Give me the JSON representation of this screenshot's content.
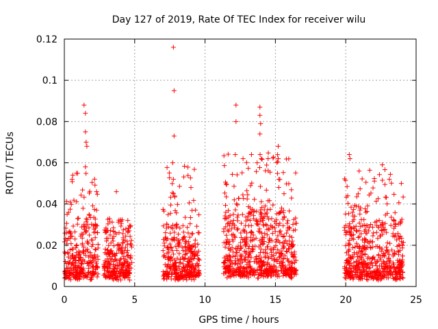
{
  "chart_data": {
    "type": "scatter",
    "title": "Day 127 of 2019, Rate Of TEC Index for receiver wilu",
    "xlabel": "GPS time / hours",
    "ylabel": "ROTI / TECUs",
    "xlim": [
      0,
      25
    ],
    "ylim": [
      0,
      0.12
    ],
    "xticks": [
      0,
      5,
      10,
      15,
      20,
      25
    ],
    "xtick_labels": [
      "0",
      "5",
      "10",
      "15",
      "20",
      "25"
    ],
    "yticks": [
      0,
      0.02,
      0.04,
      0.06,
      0.08,
      0.1,
      0.12
    ],
    "ytick_labels": [
      "0",
      "0.02",
      "0.04",
      "0.06",
      "0.08",
      "0.1",
      "0.12"
    ],
    "grid": true,
    "marker": "+",
    "color": "#ff0000",
    "clusters": [
      {
        "x_range": [
          0.0,
          2.4
        ],
        "y_typical": [
          0.003,
          0.03
        ],
        "y_outlier_max": 0.055
      },
      {
        "x_range": [
          2.8,
          4.8
        ],
        "y_typical": [
          0.003,
          0.026
        ],
        "y_outlier_max": 0.033
      },
      {
        "x_range": [
          7.0,
          9.6
        ],
        "y_typical": [
          0.003,
          0.028
        ],
        "y_outlier_max": 0.06
      },
      {
        "x_range": [
          11.3,
          16.5
        ],
        "y_typical": [
          0.004,
          0.035
        ],
        "y_outlier_max": 0.065
      },
      {
        "x_range": [
          19.9,
          24.1
        ],
        "y_typical": [
          0.003,
          0.03
        ],
        "y_outlier_max": 0.057
      }
    ],
    "notable_points": [
      {
        "x": 1.4,
        "y": 0.088
      },
      {
        "x": 1.5,
        "y": 0.084
      },
      {
        "x": 1.5,
        "y": 0.075
      },
      {
        "x": 1.55,
        "y": 0.07
      },
      {
        "x": 1.6,
        "y": 0.068
      },
      {
        "x": 1.5,
        "y": 0.058
      },
      {
        "x": 0.6,
        "y": 0.054
      },
      {
        "x": 0.55,
        "y": 0.052
      },
      {
        "x": 0.2,
        "y": 0.035
      },
      {
        "x": 3.7,
        "y": 0.046
      },
      {
        "x": 7.75,
        "y": 0.116
      },
      {
        "x": 7.8,
        "y": 0.095
      },
      {
        "x": 7.8,
        "y": 0.073
      },
      {
        "x": 7.7,
        "y": 0.06
      },
      {
        "x": 7.75,
        "y": 0.052
      },
      {
        "x": 9.0,
        "y": 0.048
      },
      {
        "x": 12.2,
        "y": 0.088
      },
      {
        "x": 12.2,
        "y": 0.08
      },
      {
        "x": 13.9,
        "y": 0.087
      },
      {
        "x": 13.9,
        "y": 0.083
      },
      {
        "x": 13.95,
        "y": 0.079
      },
      {
        "x": 13.9,
        "y": 0.074
      },
      {
        "x": 12.15,
        "y": 0.064
      },
      {
        "x": 12.7,
        "y": 0.062
      },
      {
        "x": 13.3,
        "y": 0.064
      },
      {
        "x": 14.0,
        "y": 0.062
      },
      {
        "x": 15.2,
        "y": 0.068
      },
      {
        "x": 15.2,
        "y": 0.062
      },
      {
        "x": 15.25,
        "y": 0.052
      },
      {
        "x": 20.25,
        "y": 0.064
      },
      {
        "x": 20.3,
        "y": 0.062
      },
      {
        "x": 20.95,
        "y": 0.056
      },
      {
        "x": 22.6,
        "y": 0.059
      },
      {
        "x": 23.95,
        "y": 0.05
      },
      {
        "x": 23.1,
        "y": 0.052
      }
    ]
  }
}
